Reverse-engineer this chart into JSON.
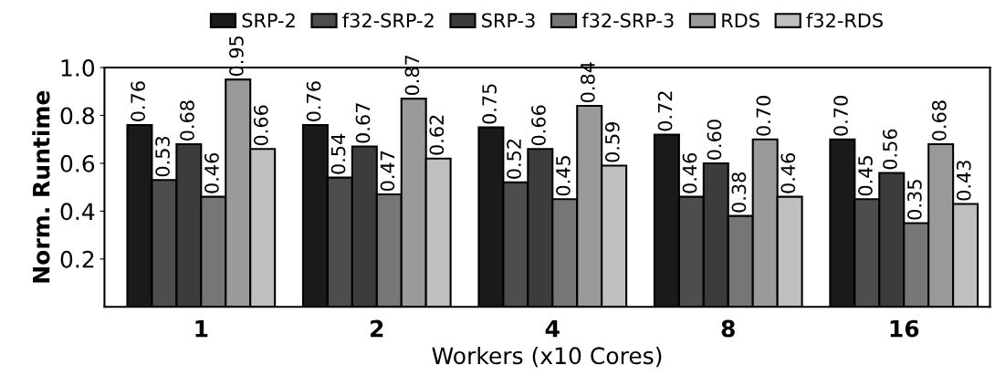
{
  "chart_data": {
    "type": "bar",
    "xlabel": "Workers (x10 Cores)",
    "ylabel": "Norm. Runtime",
    "categories": [
      "1",
      "2",
      "4",
      "8",
      "16"
    ],
    "series": [
      {
        "name": "SRP-2",
        "color": "#1a1a1a",
        "values": [
          0.76,
          0.76,
          0.75,
          0.72,
          0.7
        ],
        "value_labels": [
          "0.76",
          "0.76",
          "0.75",
          "0.72",
          "0.70"
        ]
      },
      {
        "name": "f32-SRP-2",
        "color": "#4d4d4d",
        "values": [
          0.53,
          0.54,
          0.52,
          0.46,
          0.45
        ],
        "value_labels": [
          "0.53",
          "0.54",
          "0.52",
          "0.46",
          "0.45"
        ]
      },
      {
        "name": "SRP-3",
        "color": "#3c3c3c",
        "values": [
          0.68,
          0.67,
          0.66,
          0.6,
          0.56
        ],
        "value_labels": [
          "0.68",
          "0.67",
          "0.66",
          "0.60",
          "0.56"
        ]
      },
      {
        "name": "f32-SRP-3",
        "color": "#767676",
        "values": [
          0.46,
          0.47,
          0.45,
          0.38,
          0.35
        ],
        "value_labels": [
          "0.46",
          "0.47",
          "0.45",
          "0.38",
          "0.35"
        ]
      },
      {
        "name": "RDS",
        "color": "#9a9a9a",
        "values": [
          0.95,
          0.87,
          0.84,
          0.7,
          0.68
        ],
        "value_labels": [
          "0.95",
          "0.87",
          "0.84",
          "0.70",
          "0.68"
        ]
      },
      {
        "name": "f32-RDS",
        "color": "#c0c0c0",
        "values": [
          0.66,
          0.62,
          0.59,
          0.46,
          0.43
        ],
        "value_labels": [
          "0.66",
          "0.62",
          "0.59",
          "0.46",
          "0.43"
        ]
      }
    ],
    "ylim": [
      0,
      1.0
    ],
    "yticks": [
      0.2,
      0.4,
      0.6,
      0.8,
      {
        "value": 1.0,
        "label": "1.0"
      }
    ],
    "grid": false,
    "legend": "top"
  }
}
